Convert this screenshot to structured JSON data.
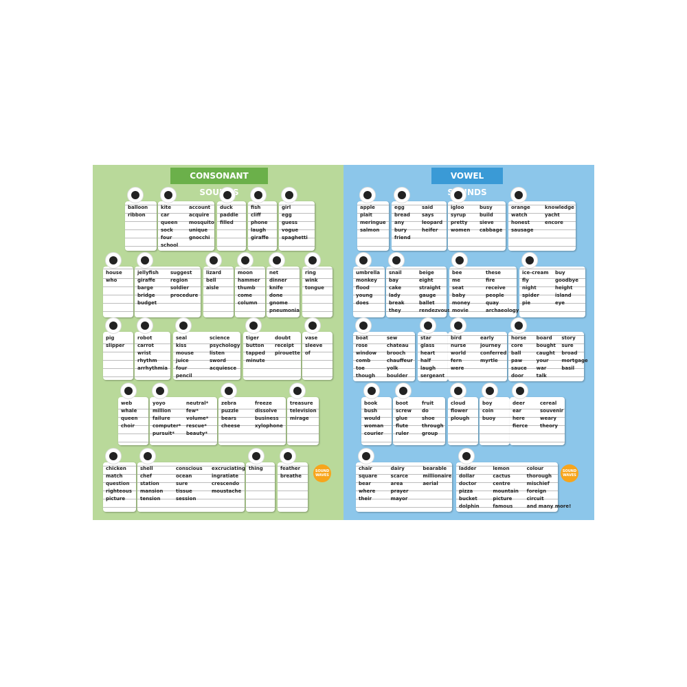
{
  "posters": [
    {
      "title": "CONSONANT SOUNDS",
      "badge": "SOUND WAVES",
      "rows": [
        [
          {
            "columns": [
              [
                "balloon",
                "ribbon"
              ]
            ]
          },
          {
            "columns": [
              [
                "kite",
                "car",
                "queen",
                "sock",
                "four",
                "school"
              ],
              [
                "account",
                "acquire",
                "mosquito",
                "unique",
                "gnocchi"
              ]
            ]
          },
          {
            "columns": [
              [
                "duck",
                "paddle",
                "filled"
              ]
            ]
          },
          {
            "columns": [
              [
                "fish",
                "cliff",
                "phone",
                "laugh",
                "giraffe"
              ]
            ]
          },
          {
            "columns": [
              [
                "girl",
                "egg",
                "guess",
                "vogue",
                "spaghetti"
              ]
            ]
          }
        ],
        [
          {
            "columns": [
              [
                "house",
                "who"
              ]
            ]
          },
          {
            "columns": [
              [
                "jellyfish",
                "giraffe",
                "barge",
                "bridge",
                "budget"
              ],
              [
                "suggest",
                "region",
                "soldier",
                "procedure"
              ]
            ]
          },
          {
            "columns": [
              [
                "lizard",
                "bell",
                "aisle"
              ]
            ]
          },
          {
            "columns": [
              [
                "moon",
                "hammer",
                "thumb",
                "come",
                "column"
              ]
            ]
          },
          {
            "columns": [
              [
                "net",
                "dinner",
                "knife",
                "done",
                "gnome",
                "pneumonia"
              ]
            ]
          },
          {
            "columns": [
              [
                "ring",
                "wink",
                "tongue"
              ]
            ]
          }
        ],
        [
          {
            "columns": [
              [
                "pig",
                "slipper"
              ]
            ]
          },
          {
            "columns": [
              [
                "robot",
                "carrot",
                "wrist",
                "rhythm",
                "arrhythmia"
              ]
            ]
          },
          {
            "columns": [
              [
                "seal",
                "kiss",
                "mouse",
                "juice",
                "four",
                "pencil"
              ],
              [
                "science",
                "psychology",
                "listen",
                "sword",
                "acquiesce"
              ]
            ]
          },
          {
            "columns": [
              [
                "tiger",
                "button",
                "tapped",
                "minute"
              ],
              [
                "doubt",
                "receipt",
                "pirouette"
              ]
            ]
          },
          {
            "columns": [
              [
                "vase",
                "sleeve",
                "of"
              ]
            ]
          }
        ],
        [
          {
            "columns": [
              [
                "web",
                "whale",
                "queen",
                "choir"
              ]
            ]
          },
          {
            "columns": [
              [
                "yoyo",
                "million",
                "failure",
                "computer*",
                "pursuit*"
              ],
              [
                "neutral*",
                "few*",
                "volume*",
                "rescue*",
                "beauty*"
              ]
            ]
          },
          {
            "columns": [
              [
                "zebra",
                "puzzle",
                "bears",
                "cheese"
              ],
              [
                "freeze",
                "dissolve",
                "business",
                "xylophone"
              ]
            ]
          },
          {
            "columns": [
              [
                "treasure",
                "television",
                "mirage"
              ]
            ]
          }
        ],
        [
          {
            "columns": [
              [
                "chicken",
                "match",
                "question",
                "righteous",
                "picture"
              ]
            ]
          },
          {
            "columns": [
              [
                "shell",
                "chef",
                "station",
                "mansion",
                "tension"
              ],
              [
                "conscious",
                "ocean",
                "sure",
                "tissue",
                "session"
              ],
              [
                "excruciating",
                "ingratiate",
                "crescendo",
                "moustache"
              ]
            ]
          },
          {
            "columns": [
              [
                "thing"
              ]
            ]
          },
          {
            "columns": [
              [
                "feather",
                "breathe"
              ]
            ]
          }
        ]
      ]
    },
    {
      "title": "VOWEL SOUNDS",
      "badge": "SOUND WAVES",
      "rows": [
        [
          {
            "columns": [
              [
                "apple",
                "plait",
                "meringue",
                "salmon"
              ]
            ]
          },
          {
            "columns": [
              [
                "egg",
                "bread",
                "any",
                "bury",
                "friend"
              ],
              [
                "said",
                "says",
                "leopard",
                "heifer"
              ]
            ]
          },
          {
            "columns": [
              [
                "igloo",
                "syrup",
                "pretty",
                "women"
              ],
              [
                "busy",
                "build",
                "sieve",
                "cabbage"
              ]
            ]
          },
          {
            "columns": [
              [
                "orange",
                "watch",
                "honest",
                "sausage"
              ],
              [
                "knowledge",
                "yacht",
                "encore"
              ]
            ]
          }
        ],
        [
          {
            "columns": [
              [
                "umbrella",
                "monkey",
                "flood",
                "young",
                "does"
              ]
            ]
          },
          {
            "columns": [
              [
                "snail",
                "bay",
                "cake",
                "lady",
                "break",
                "they"
              ],
              [
                "beige",
                "eight",
                "straight",
                "gauge",
                "ballet",
                "rendezvous"
              ]
            ]
          },
          {
            "columns": [
              [
                "bee",
                "me",
                "seat",
                "baby",
                "money",
                "movie"
              ],
              [
                "these",
                "fire",
                "receive",
                "people",
                "quay",
                "archaeology"
              ]
            ]
          },
          {
            "columns": [
              [
                "ice-cream",
                "fly",
                "night",
                "spider",
                "pie"
              ],
              [
                "buy",
                "goodbye",
                "height",
                "island",
                "eye"
              ]
            ]
          }
        ],
        [
          {
            "columns": [
              [
                "boat",
                "rose",
                "window",
                "comb",
                "toe",
                "though"
              ],
              [
                "sew",
                "chateau",
                "brooch",
                "chauffeur",
                "yolk",
                "boulder"
              ]
            ]
          },
          {
            "columns": [
              [
                "star",
                "glass",
                "heart",
                "half",
                "laugh",
                "sergeant"
              ]
            ]
          },
          {
            "columns": [
              [
                "bird",
                "nurse",
                "world",
                "fern",
                "were"
              ],
              [
                "early",
                "journey",
                "conferred",
                "myrtle"
              ]
            ]
          },
          {
            "columns": [
              [
                "horse",
                "core",
                "ball",
                "paw",
                "sauce",
                "door"
              ],
              [
                "board",
                "bought",
                "caught",
                "your",
                "war",
                "talk"
              ],
              [
                "story",
                "sure",
                "broad",
                "mortgage",
                "basil"
              ]
            ]
          }
        ],
        [
          {
            "columns": [
              [
                "book",
                "bush",
                "would",
                "woman",
                "courier"
              ]
            ]
          },
          {
            "columns": [
              [
                "boot",
                "screw",
                "glue",
                "flute",
                "ruler"
              ],
              [
                "fruit",
                "do",
                "shoe",
                "through",
                "group"
              ]
            ]
          },
          {
            "columns": [
              [
                "cloud",
                "flower",
                "plough"
              ]
            ]
          },
          {
            "columns": [
              [
                "boy",
                "coin",
                "buoy"
              ]
            ]
          },
          {
            "columns": [
              [
                "deer",
                "ear",
                "here",
                "fierce"
              ],
              [
                "cereal",
                "souvenir",
                "weary",
                "theory"
              ]
            ]
          }
        ],
        [
          {
            "columns": [
              [
                "chair",
                "square",
                "bear",
                "where",
                "their"
              ],
              [
                "dairy",
                "scarce",
                "area",
                "prayer",
                "mayor"
              ],
              [
                "bearable",
                "millionaire",
                "aerial"
              ]
            ]
          },
          {
            "columns": [
              [
                "ladder",
                "dollar",
                "doctor",
                "pizza",
                "bucket",
                "dolphin"
              ],
              [
                "lemon",
                "cactus",
                "centre",
                "mountain",
                "picture",
                "famous"
              ],
              [
                "colour",
                "thorough",
                "mischief",
                "foreign",
                "circuit",
                "and many more!"
              ]
            ]
          }
        ]
      ]
    }
  ]
}
